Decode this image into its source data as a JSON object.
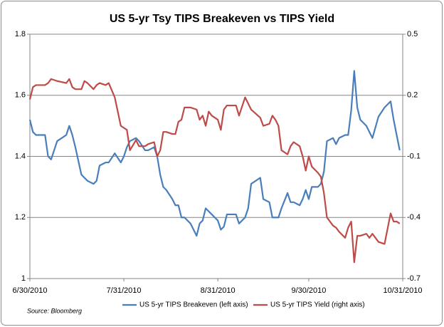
{
  "chart_data": {
    "type": "line",
    "title": "US 5-yr Tsy TIPS Breakeven vs TIPS Yield",
    "source": "Source: Bloomberg",
    "x": [
      "6/30/2010",
      "7/1/2010",
      "7/2/2010",
      "7/5/2010",
      "7/6/2010",
      "7/7/2010",
      "7/9/2010",
      "7/12/2010",
      "7/13/2010",
      "7/14/2010",
      "7/15/2010",
      "7/17/2010",
      "7/18/2010",
      "7/19/2010",
      "7/21/2010",
      "7/22/2010",
      "7/23/2010",
      "7/25/2010",
      "7/26/2010",
      "7/28/2010",
      "7/30/2010",
      "7/31/2010",
      "8/1/2010",
      "8/2/2010",
      "8/4/2010",
      "8/5/2010",
      "8/7/2010",
      "8/8/2010",
      "8/10/2010",
      "8/11/2010",
      "8/12/2010",
      "8/13/2010",
      "8/14/2010",
      "8/16/2010",
      "8/17/2010",
      "8/18/2010",
      "8/19/2010",
      "8/20/2010",
      "8/22/2010",
      "8/24/2010",
      "8/25/2010",
      "8/26/2010",
      "8/27/2010",
      "8/28/2010",
      "8/29/2010",
      "8/31/2010",
      "9/1/2010",
      "9/2/2010",
      "9/3/2010",
      "9/4/2010",
      "9/6/2010",
      "9/7/2010",
      "9/9/2010",
      "9/10/2010",
      "9/11/2010",
      "9/14/2010",
      "9/15/2010",
      "9/17/2010",
      "9/18/2010",
      "9/19/2010",
      "9/20/2010",
      "9/21/2010",
      "9/23/2010",
      "9/24/2010",
      "9/25/2010",
      "9/27/2010",
      "9/28/2010",
      "9/29/2010",
      "9/30/2010",
      "10/1/2010",
      "10/3/2010",
      "10/4/2010",
      "10/5/2010",
      "10/6/2010",
      "10/8/2010",
      "10/9/2010",
      "10/10/2010",
      "10/12/2010",
      "10/13/2010",
      "10/14/2010",
      "10/15/2010",
      "10/16/2010",
      "10/17/2010",
      "10/19/2010",
      "10/20/2010",
      "10/21/2010",
      "10/23/2010",
      "10/25/2010",
      "10/27/2010",
      "10/28/2010",
      "10/29/2010",
      "10/30/2010"
    ],
    "series": [
      {
        "name": "US 5-yr TIPS Breakeven (left axis)",
        "color": "#4a7ebb",
        "axis": "y",
        "values": [
          1.52,
          1.48,
          1.47,
          1.47,
          1.4,
          1.39,
          1.45,
          1.47,
          1.5,
          1.47,
          1.43,
          1.34,
          1.33,
          1.32,
          1.31,
          1.32,
          1.37,
          1.38,
          1.38,
          1.41,
          1.38,
          1.4,
          1.43,
          1.45,
          1.46,
          1.45,
          1.42,
          1.42,
          1.43,
          1.4,
          1.34,
          1.3,
          1.29,
          1.26,
          1.24,
          1.24,
          1.2,
          1.2,
          1.18,
          1.14,
          1.18,
          1.19,
          1.23,
          1.22,
          1.21,
          1.19,
          1.16,
          1.17,
          1.21,
          1.21,
          1.21,
          1.18,
          1.2,
          1.23,
          1.31,
          1.33,
          1.26,
          1.25,
          1.2,
          1.2,
          1.2,
          1.23,
          1.28,
          1.25,
          1.25,
          1.24,
          1.26,
          1.29,
          1.26,
          1.3,
          1.3,
          1.31,
          1.35,
          1.45,
          1.46,
          1.44,
          1.46,
          1.47,
          1.47,
          1.55,
          1.68,
          1.56,
          1.52,
          1.5,
          1.48,
          1.46,
          1.53,
          1.56,
          1.58,
          1.52,
          1.47,
          1.42
        ]
      },
      {
        "name": "US 5-yr TIPS Yield (right axis)",
        "color": "#be4b48",
        "axis": "y2",
        "values": [
          0.18,
          0.24,
          0.25,
          0.25,
          0.26,
          0.28,
          0.27,
          0.26,
          0.28,
          0.24,
          0.23,
          0.23,
          0.27,
          0.26,
          0.23,
          0.25,
          0.26,
          0.25,
          0.26,
          0.19,
          0.05,
          0.04,
          0.03,
          -0.07,
          -0.02,
          -0.05,
          -0.05,
          -0.04,
          -0.03,
          -0.1,
          -0.07,
          0.02,
          0.02,
          0.01,
          0.01,
          0.07,
          0.08,
          0.14,
          0.14,
          0.13,
          0.08,
          0.1,
          0.05,
          0.12,
          0.1,
          0.08,
          0.03,
          0.13,
          0.15,
          0.15,
          0.15,
          0.1,
          0.19,
          0.16,
          0.13,
          0.09,
          0.05,
          0.06,
          0.1,
          0.08,
          0.05,
          -0.07,
          -0.09,
          -0.05,
          -0.03,
          -0.05,
          -0.1,
          -0.17,
          -0.1,
          -0.15,
          -0.18,
          -0.2,
          -0.28,
          -0.4,
          -0.44,
          -0.45,
          -0.47,
          -0.5,
          -0.45,
          -0.42,
          -0.62,
          -0.49,
          -0.49,
          -0.48,
          -0.5,
          -0.48,
          -0.52,
          -0.53,
          -0.38,
          -0.42,
          -0.42,
          -0.43
        ]
      }
    ],
    "xlim": [
      "6/30/2010",
      "10/31/2010"
    ],
    "xticks": [
      "6/30/2010",
      "7/31/2010",
      "8/31/2010",
      "9/30/2010",
      "10/31/2010"
    ],
    "ylim": [
      1,
      1.8
    ],
    "yticks": [
      1,
      1.2,
      1.4,
      1.6,
      1.8
    ],
    "y2lim": [
      -0.7,
      0.5
    ],
    "y2ticks": [
      -0.7,
      -0.4,
      -0.1,
      0.2,
      0.5
    ],
    "grid": true,
    "legend": "bottom"
  }
}
